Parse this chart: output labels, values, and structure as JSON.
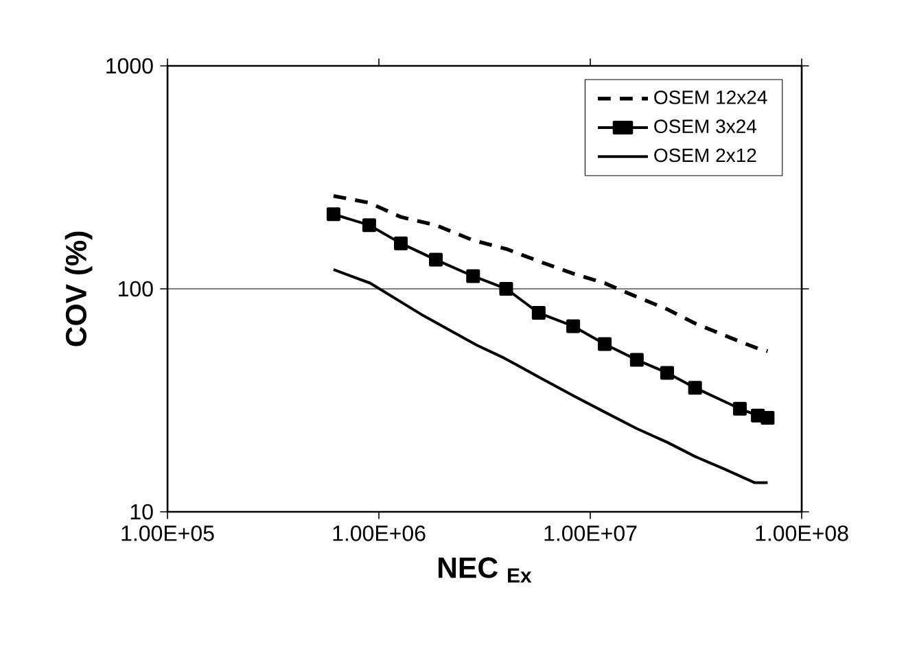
{
  "chart_data": {
    "type": "line",
    "xlabel": "NEC $_{Ex}$",
    "ylabel": "COV (%)",
    "log": "xy",
    "xlim": [
      100000,
      100000000
    ],
    "ylim": [
      10,
      1000
    ],
    "xticks": [
      {
        "value": 100000,
        "label": "1.00E+05"
      },
      {
        "value": 1000000,
        "label": "1.00E+06"
      },
      {
        "value": 10000000,
        "label": "1.00E+07"
      },
      {
        "value": 100000000,
        "label": "1.00E+08"
      }
    ],
    "yticks": [
      10,
      100,
      1000
    ],
    "grid": "y",
    "legend": "top right",
    "series": [
      {
        "name": "OSEM 12x24",
        "color": "#000000",
        "line_style": "dashed",
        "marker": "none",
        "x": [
          610000,
          900000,
          1270000,
          1860000,
          2790000,
          4000000,
          5700000,
          8300000,
          11700000,
          16600000,
          23100000,
          31300000,
          51000000,
          62000000,
          69000000
        ],
        "values": [
          261,
          243,
          210,
          193,
          165,
          151,
          133,
          117,
          106,
          92,
          81,
          70,
          58,
          54,
          52.5
        ]
      },
      {
        "name": "OSEM 3x24",
        "color": "#000000",
        "line_style": "solid",
        "marker": "square",
        "x": [
          610000,
          900000,
          1270000,
          1860000,
          2790000,
          4000000,
          5700000,
          8300000,
          11700000,
          16600000,
          23100000,
          31300000,
          51000000,
          62000000,
          69000000
        ],
        "values": [
          216,
          193,
          160,
          135,
          114,
          100,
          78,
          68,
          56.5,
          48,
          42,
          36,
          29,
          27,
          26.4
        ]
      },
      {
        "name": "OSEM 2x12",
        "color": "#000000",
        "line_style": "solid",
        "marker": "none",
        "x": [
          610000,
          910000,
          1580000,
          2890000,
          3900000,
          4800000,
          5900000,
          8400000,
          11700000,
          16600000,
          23100000,
          31300000,
          42700000,
          60000000,
          69000000
        ],
        "values": [
          122,
          106,
          77,
          56,
          49,
          44,
          39.5,
          33,
          28,
          23.6,
          20.5,
          17.7,
          15.6,
          13.5,
          13.5
        ]
      }
    ]
  }
}
